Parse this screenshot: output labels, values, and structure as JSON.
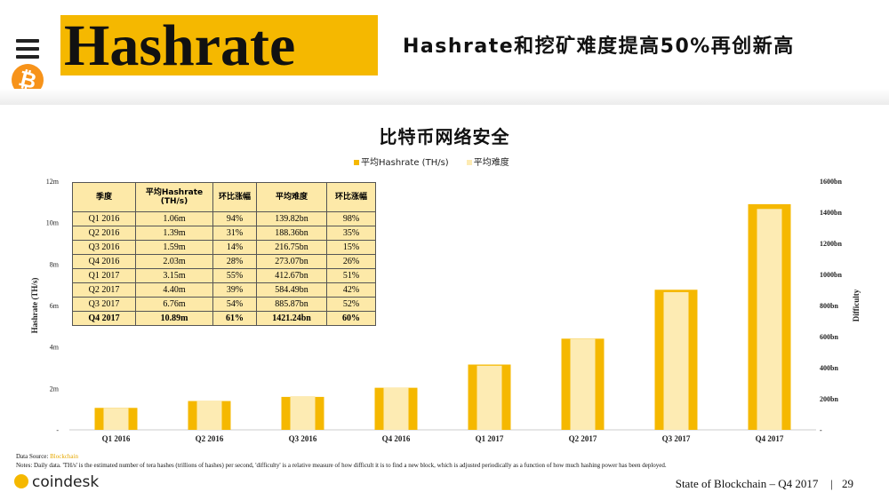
{
  "header": {
    "title": "Hashrate",
    "subtitle": "Hashrate和挖矿难度提高50%再创新高"
  },
  "chart_data": {
    "type": "bar",
    "title": "比特币网络安全",
    "categories": [
      "Q1 2016",
      "Q2 2016",
      "Q3 2016",
      "Q4 2016",
      "Q1 2017",
      "Q2 2017",
      "Q3 2017",
      "Q4 2017"
    ],
    "series": [
      {
        "name": "平均Hashrate (TH/s)",
        "axis": "left",
        "color": "#f5b800",
        "values": [
          1.06,
          1.39,
          1.59,
          2.03,
          3.15,
          4.4,
          6.76,
          10.89
        ]
      },
      {
        "name": "平均难度",
        "axis": "right",
        "color": "#fdebb3",
        "values": [
          139.82,
          188.36,
          216.75,
          273.07,
          412.67,
          584.49,
          885.87,
          1421.24
        ]
      }
    ],
    "ylabel_left": "Hashrate (TH/s)",
    "ylabel_right": "Difficulty",
    "ylim_left": [
      0,
      12
    ],
    "ylim_right": [
      0,
      1600
    ],
    "left_ticks": [
      "-",
      "2m",
      "4m",
      "6m",
      "8m",
      "10m",
      "12m"
    ],
    "right_ticks": [
      "-",
      "200bn",
      "400bn",
      "600bn",
      "800bn",
      "1000bn",
      "1200bn",
      "1400bn",
      "1600bn"
    ],
    "legend_position": "top-center",
    "grid": false
  },
  "table": {
    "headers": [
      "季度",
      "平均Hashrate (TH/s)",
      "环比涨幅",
      "平均难度",
      "环比涨幅"
    ],
    "rows": [
      [
        "Q1 2016",
        "1.06m",
        "94%",
        "139.82bn",
        "98%"
      ],
      [
        "Q2 2016",
        "1.39m",
        "31%",
        "188.36bn",
        "35%"
      ],
      [
        "Q3 2016",
        "1.59m",
        "14%",
        "216.75bn",
        "15%"
      ],
      [
        "Q4 2016",
        "2.03m",
        "28%",
        "273.07bn",
        "26%"
      ],
      [
        "Q1 2017",
        "3.15m",
        "55%",
        "412.67bn",
        "51%"
      ],
      [
        "Q2 2017",
        "4.40m",
        "39%",
        "584.49bn",
        "42%"
      ],
      [
        "Q3 2017",
        "6.76m",
        "54%",
        "885.87bn",
        "52%"
      ],
      [
        "Q4 2017",
        "10.89m",
        "61%",
        "1421.24bn",
        "60%"
      ]
    ]
  },
  "footer": {
    "source_label": "Data Source: ",
    "source_link": "Blockchain",
    "notes": "Notes: Daily data. 'TH/s' is the estimated number of tera hashes (trillions of hashes) per second, 'difficulty' is a relative measure of how difficult it is to find a new block, which is adjusted periodically as a function of how much hashing power has been deployed.",
    "brand": "coindesk",
    "report": "State of Blockchain – Q4 2017",
    "separator": "|",
    "page": "29"
  }
}
